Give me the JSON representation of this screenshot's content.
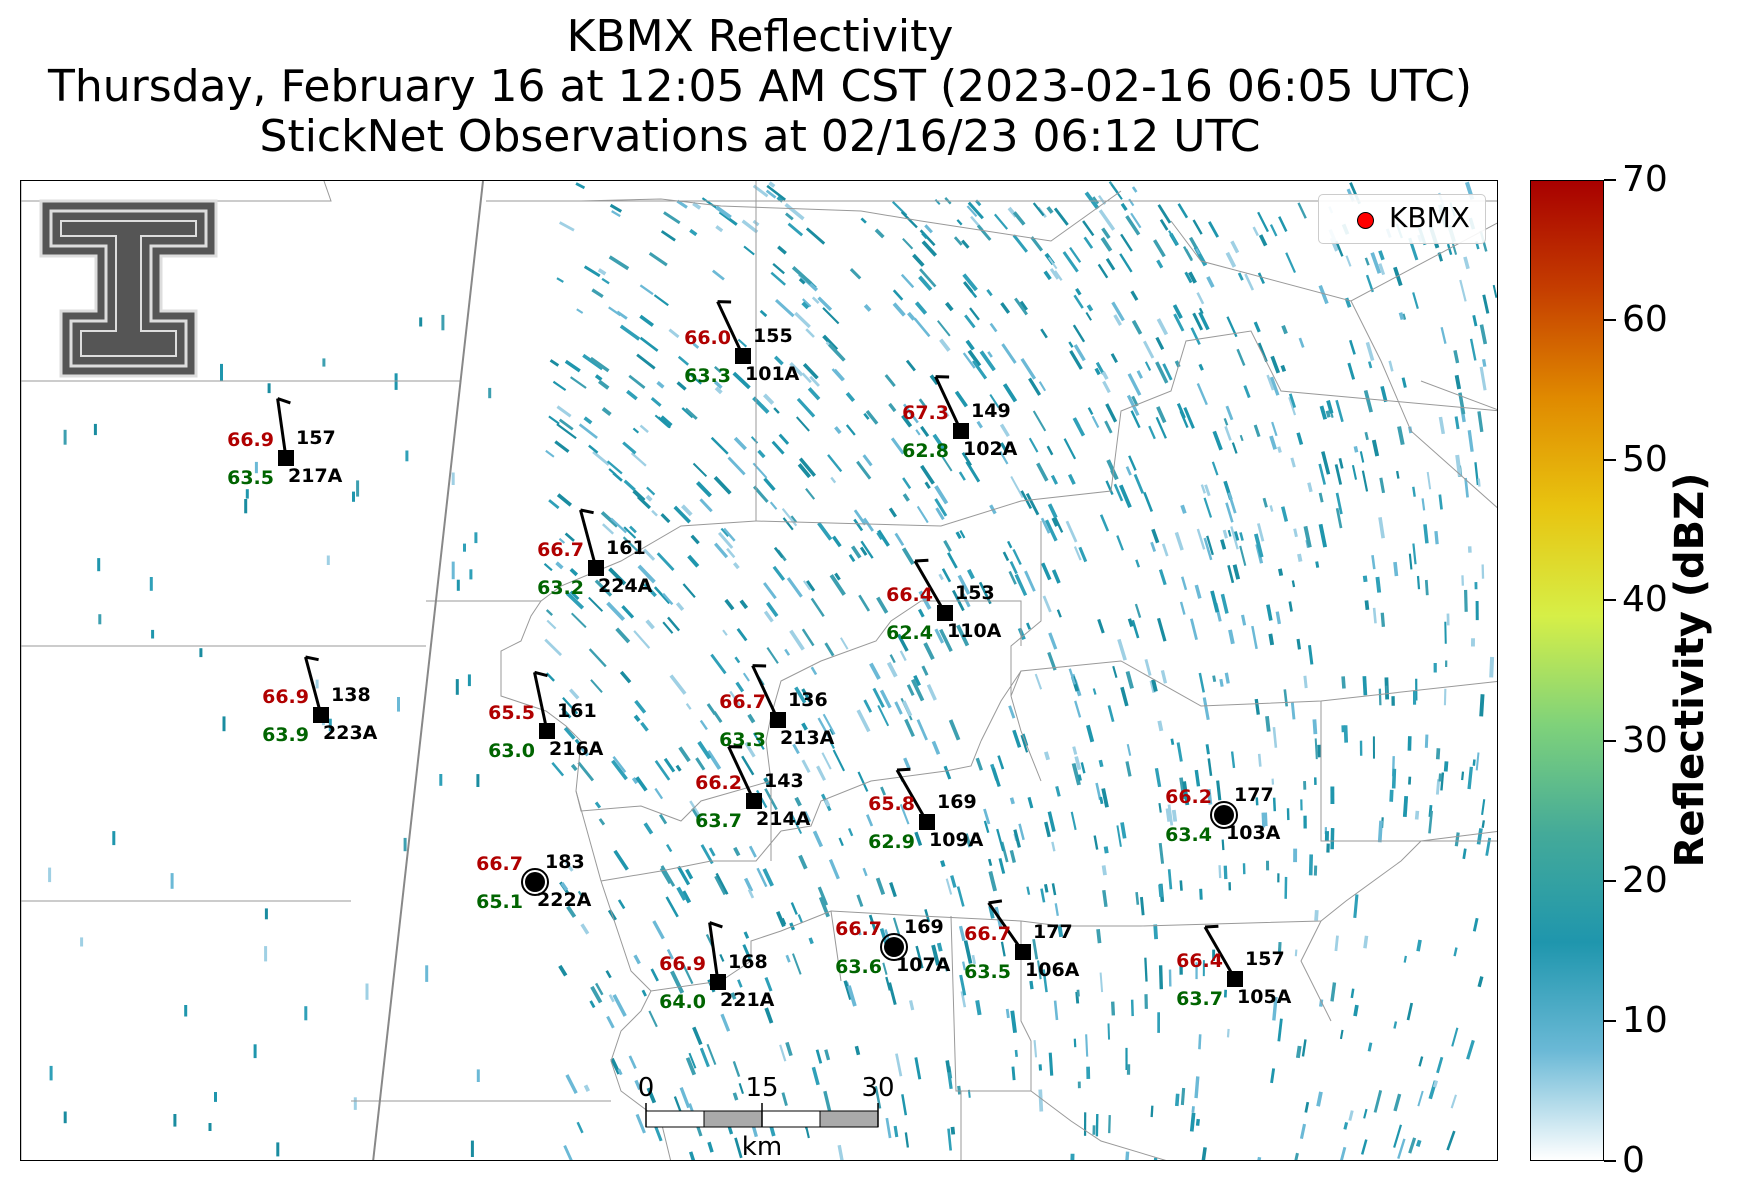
{
  "title": {
    "line1": "KBMX Reflectivity",
    "line2": "Thursday, February 16 at 12:05 AM CST (2023-02-16 06:05 UTC)",
    "line3": "StickNet Observations at 02/16/23 06:12 UTC"
  },
  "legend": {
    "label": "KBMX",
    "marker_color": "#ff0000"
  },
  "colorbar": {
    "title": "Reflectivity (dBZ)",
    "ticks": [
      "0",
      "10",
      "20",
      "30",
      "40",
      "50",
      "60",
      "70"
    ],
    "range": [
      0,
      70
    ],
    "colors": [
      "#ffffff",
      "#6bb9d6",
      "#1f96ad",
      "#44aa99",
      "#7fd27a",
      "#d6ef47",
      "#e8c410",
      "#e08a00",
      "#c53e00",
      "#a80000"
    ]
  },
  "scalebar": {
    "ticks": [
      "0",
      "15",
      "30"
    ],
    "unit": "km"
  },
  "colors": {
    "temp": "#b00000",
    "dewpoint": "#006400"
  },
  "stations": [
    {
      "id": "155",
      "name": "101A",
      "temp": "66.0",
      "dew": "63.3"
    },
    {
      "id": "149",
      "name": "102A",
      "temp": "67.3",
      "dew": "62.8"
    },
    {
      "id": "157",
      "name": "217A",
      "temp": "66.9",
      "dew": "63.5"
    },
    {
      "id": "161",
      "name": "224A",
      "temp": "66.7",
      "dew": "63.2"
    },
    {
      "id": "153",
      "name": "110A",
      "temp": "66.4",
      "dew": "62.4"
    },
    {
      "id": "138",
      "name": "223A",
      "temp": "66.9",
      "dew": "63.9"
    },
    {
      "id": "161",
      "name": "216A",
      "temp": "65.5",
      "dew": "63.0"
    },
    {
      "id": "136",
      "name": "213A",
      "temp": "66.7",
      "dew": "63.3"
    },
    {
      "id": "143",
      "name": "214A",
      "temp": "66.2",
      "dew": "63.7"
    },
    {
      "id": "169",
      "name": "109A",
      "temp": "65.8",
      "dew": "62.9"
    },
    {
      "id": "177",
      "name": "103A",
      "temp": "66.2",
      "dew": "63.4"
    },
    {
      "id": "183",
      "name": "222A",
      "temp": "66.7",
      "dew": "65.1"
    },
    {
      "id": "169",
      "name": "107A",
      "temp": "66.7",
      "dew": "63.6"
    },
    {
      "id": "177",
      "name": "106A",
      "temp": "66.7",
      "dew": "63.5"
    },
    {
      "id": "157",
      "name": "105A",
      "temp": "66.4",
      "dew": "63.7"
    },
    {
      "id": "168",
      "name": "221A",
      "temp": "66.9",
      "dew": "64.0"
    }
  ]
}
